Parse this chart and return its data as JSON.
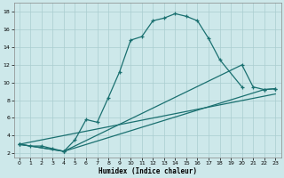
{
  "xlabel": "Humidex (Indice chaleur)",
  "background_color": "#cde8ea",
  "grid_color": "#aacdd0",
  "line_color": "#1a7070",
  "xlim": [
    -0.5,
    23.5
  ],
  "ylim": [
    1.5,
    19
  ],
  "xticks": [
    0,
    1,
    2,
    3,
    4,
    5,
    6,
    7,
    8,
    9,
    10,
    11,
    12,
    13,
    14,
    15,
    16,
    17,
    18,
    19,
    20,
    21,
    22,
    23
  ],
  "yticks": [
    2,
    4,
    6,
    8,
    10,
    12,
    14,
    16,
    18
  ],
  "line1_x": [
    0,
    1,
    2,
    3,
    4,
    5,
    6,
    7,
    8,
    9,
    10,
    11,
    12,
    13,
    14,
    15,
    16,
    17,
    18,
    20
  ],
  "line1_y": [
    3.0,
    2.8,
    2.8,
    2.5,
    2.2,
    3.5,
    5.8,
    5.5,
    8.3,
    11.2,
    14.8,
    15.2,
    17.0,
    17.3,
    17.8,
    17.5,
    17.0,
    15.0,
    12.6,
    9.5
  ],
  "line2_x": [
    0,
    4,
    22,
    23
  ],
  "line2_y": [
    3.0,
    2.2,
    9.2,
    9.3
  ],
  "line3_x": [
    0,
    4,
    20,
    21,
    22,
    23
  ],
  "line3_y": [
    3.0,
    2.2,
    12.0,
    9.5,
    9.2,
    9.3
  ],
  "line4_x": [
    0,
    23
  ],
  "line4_y": [
    3.0,
    8.7
  ]
}
